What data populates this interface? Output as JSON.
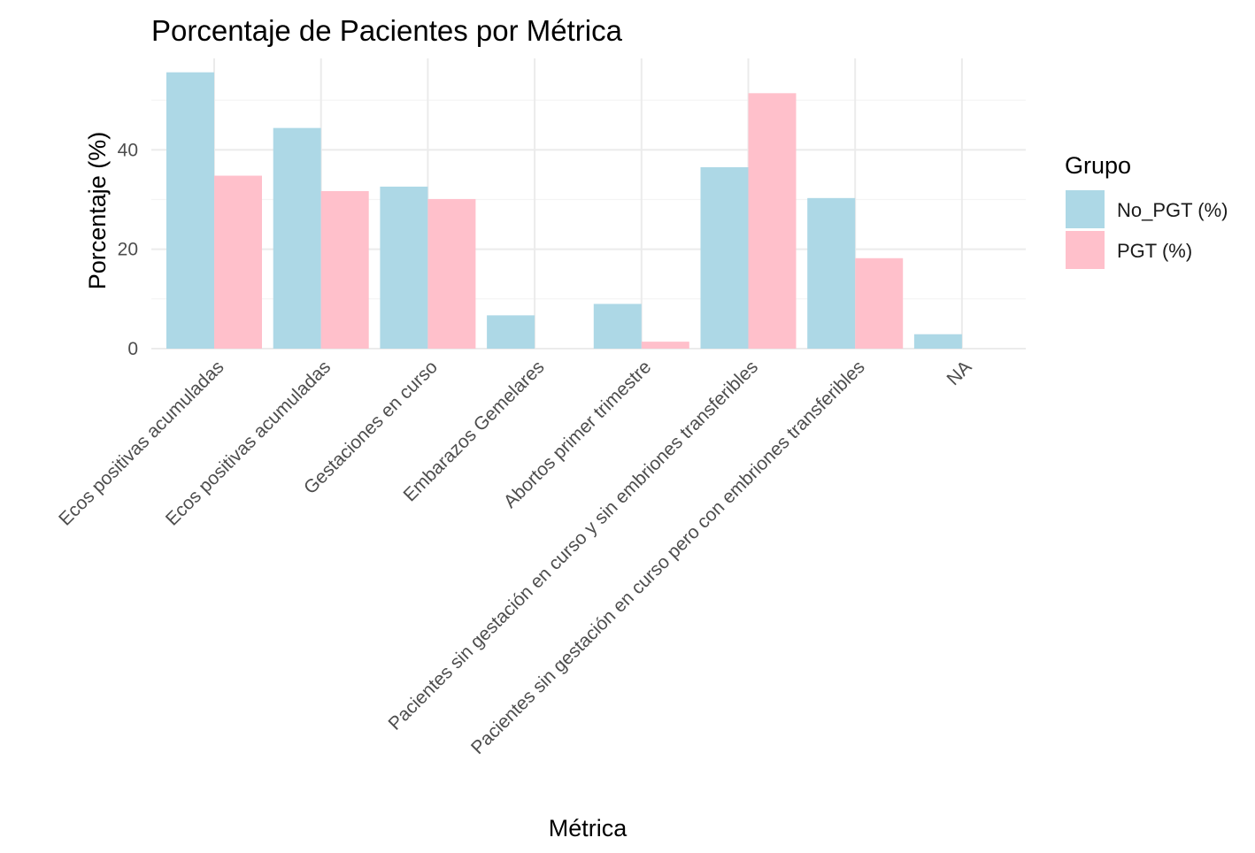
{
  "chart_data": {
    "type": "bar",
    "title": "Porcentaje de Pacientes por Métrica",
    "xlabel": "Métrica",
    "ylabel": "Porcentaje (%)",
    "categories": [
      "Ecos positivas acumuladas",
      "Ecos positivas acumuladas",
      "Gestaciones en curso",
      "Embarazos Gemelares",
      "Abortos primer trimestre",
      "Pacientes sin gestación en curso y sin embriones transferibles",
      "Pacientes sin gestación en curso pero con embriones transferibles",
      "NA"
    ],
    "series": [
      {
        "name": "No_PGT (%)",
        "color": "#add8e6",
        "values": [
          55.6,
          44.4,
          32.6,
          6.7,
          9.0,
          36.5,
          30.3,
          2.9
        ]
      },
      {
        "name": "PGT (%)",
        "color": "#ffc0cb",
        "values": [
          34.8,
          31.7,
          30.1,
          0,
          1.4,
          51.4,
          18.2,
          0
        ]
      }
    ],
    "yticks": [
      0,
      20,
      40
    ],
    "ylim": [
      0,
      58.4
    ],
    "grid": true,
    "legend": {
      "title": "Grupo",
      "position": "right"
    }
  }
}
